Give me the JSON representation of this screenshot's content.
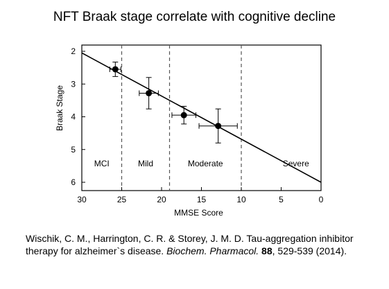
{
  "title": "NFT Braak stage correlate with cognitive decline",
  "chart_data": {
    "type": "scatter",
    "title": "NFT Braak stage correlate with cognitive decline",
    "xlabel": "MMSE Score",
    "ylabel": "Braak Stage",
    "xlim": [
      30,
      0
    ],
    "ylim": [
      2,
      6.2
    ],
    "x_reversed": true,
    "y_reversed": true,
    "x_ticks": [
      "30",
      "25",
      "20",
      "15",
      "10",
      "5",
      "0"
    ],
    "y_ticks": [
      "2",
      "3",
      "4",
      "5",
      "6"
    ],
    "grid": false,
    "regions": [
      {
        "label": "MCI",
        "x_from": 30,
        "x_to": 25
      },
      {
        "label": "Mild",
        "x_from": 25,
        "x_to": 19
      },
      {
        "label": "Moderate",
        "x_from": 19,
        "x_to": 10
      },
      {
        "label": "Severe",
        "x_from": 10,
        "x_to": 0
      }
    ],
    "dividers": [
      25,
      19,
      10
    ],
    "points": [
      {
        "x": 25.8,
        "y": 2.55,
        "x_err": 0.7,
        "y_err": 0.22
      },
      {
        "x": 21.6,
        "y": 3.28,
        "x_err": 1.2,
        "y_err": 0.48
      },
      {
        "x": 17.2,
        "y": 3.95,
        "x_err": 1.5,
        "y_err": 0.27
      },
      {
        "x": 12.9,
        "y": 4.28,
        "x_err": 2.4,
        "y_err": 0.52
      }
    ],
    "regression_line": {
      "x": [
        30,
        0
      ],
      "y": [
        2.05,
        6.0
      ]
    }
  },
  "citation": {
    "authors": "Wischik, C. M., Harrington, C. R. & Storey, J. M. D. Tau-aggregation inhibitor therapy for alzheimer`s disease. ",
    "journal": "Biochem. Pharmacol.",
    "volume": "88",
    "pages": ", 529-539 (2014)."
  }
}
